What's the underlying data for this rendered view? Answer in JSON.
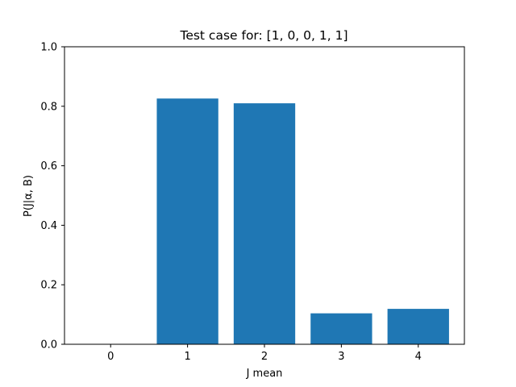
{
  "chart_data": {
    "type": "bar",
    "title": "Test case for: [1, 0, 0, 1, 1]",
    "xlabel": "J mean",
    "ylabel": "P(J|α, B)",
    "categories": [
      "0",
      "1",
      "2",
      "3",
      "4"
    ],
    "values": [
      0.0,
      0.826,
      0.81,
      0.104,
      0.119
    ],
    "ylim": [
      0,
      1.0
    ],
    "yticks": [
      "0.0",
      "0.2",
      "0.4",
      "0.6",
      "0.8",
      "1.0"
    ],
    "ytick_values": [
      0,
      0.2,
      0.4,
      0.6,
      0.8,
      1.0
    ],
    "grid": false,
    "bar_color": "#1f77b4"
  }
}
